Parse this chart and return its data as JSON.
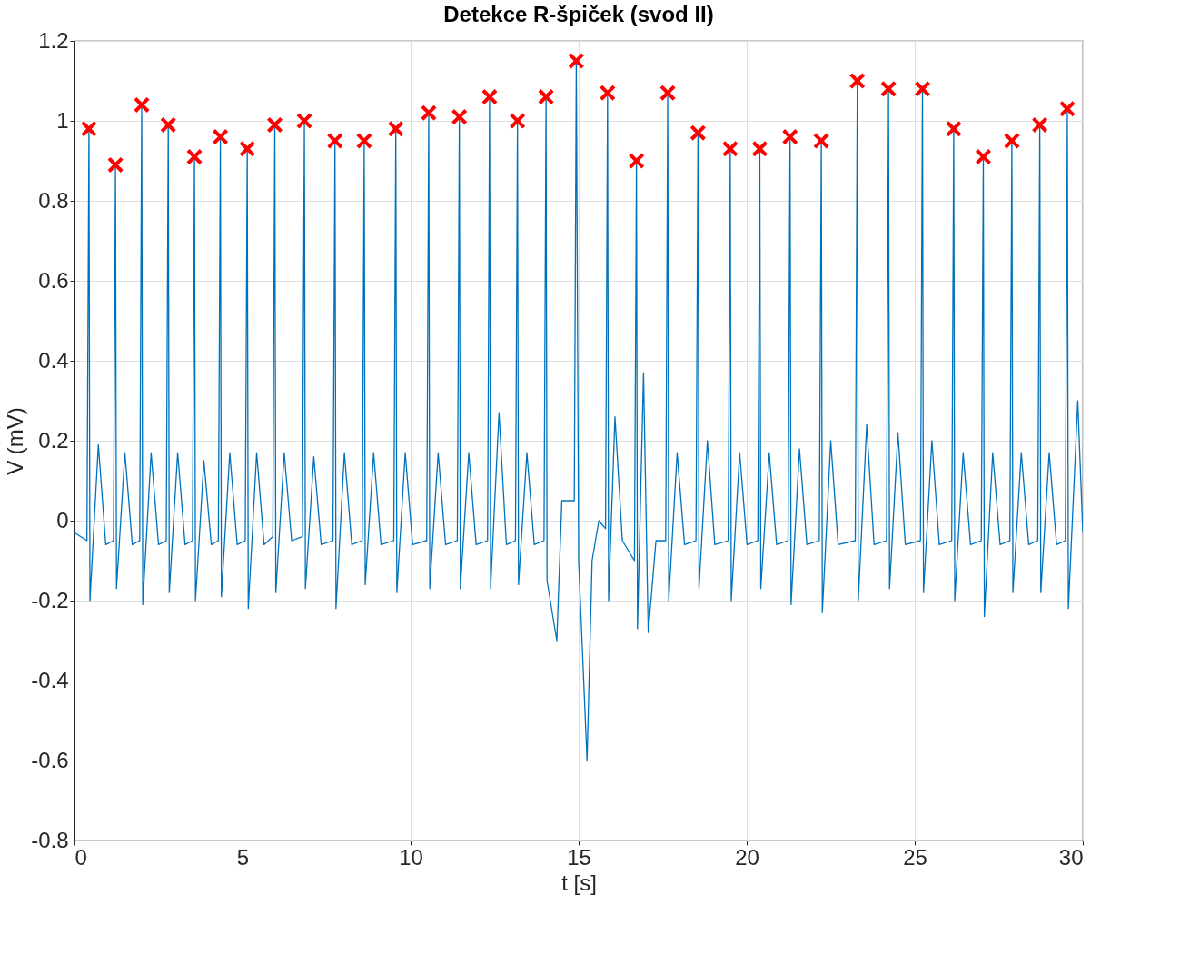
{
  "chart_data": {
    "type": "line",
    "title": "Detekce R-špiček (svod II)",
    "xlabel": "t [s]",
    "ylabel": "V (mV)",
    "xlim": [
      0,
      30
    ],
    "ylim": [
      -0.8,
      1.2
    ],
    "xticks": [
      0,
      5,
      10,
      15,
      20,
      25,
      30
    ],
    "yticks": [
      -0.8,
      -0.6,
      -0.4,
      -0.2,
      0,
      0.2,
      0.4,
      0.6,
      0.8,
      1,
      1.2
    ],
    "grid": true,
    "series": [
      {
        "color": "#0072bd",
        "marker": "none",
        "line_style": "solid",
        "x": [
          0,
          0.37,
          0.43,
          0.46,
          0.71,
          0.93,
          1.16,
          1.22,
          1.25,
          1.5,
          1.72,
          1.94,
          2.0,
          2.03,
          2.28,
          2.5,
          2.73,
          2.79,
          2.82,
          3.07,
          3.29,
          3.51,
          3.57,
          3.6,
          3.85,
          4.07,
          4.28,
          4.34,
          4.37,
          4.62,
          4.84,
          5.08,
          5.14,
          5.17,
          5.42,
          5.64,
          5.9,
          5.96,
          5.99,
          6.24,
          6.46,
          6.78,
          6.84,
          6.87,
          7.12,
          7.34,
          7.69,
          7.75,
          7.78,
          8.03,
          8.25,
          8.56,
          8.62,
          8.65,
          8.9,
          9.12,
          9.5,
          9.56,
          9.59,
          9.84,
          10.06,
          10.48,
          10.54,
          10.57,
          10.82,
          11.04,
          11.39,
          11.45,
          11.48,
          11.73,
          11.95,
          12.29,
          12.35,
          12.38,
          12.63,
          12.85,
          13.12,
          13.18,
          13.21,
          13.46,
          13.68,
          13.97,
          14.03,
          14.06,
          14.35,
          14.5,
          14.87,
          14.93,
          15.0,
          15.25,
          15.4,
          15.6,
          15.8,
          15.86,
          15.89,
          16.08,
          16.3,
          16.66,
          16.72,
          16.75,
          16.93,
          17.07,
          17.3,
          17.59,
          17.65,
          17.68,
          17.93,
          18.15,
          18.49,
          18.55,
          18.58,
          18.83,
          19.05,
          19.45,
          19.51,
          19.54,
          19.79,
          20.01,
          20.33,
          20.39,
          20.42,
          20.67,
          20.89,
          21.23,
          21.29,
          21.32,
          21.57,
          21.79,
          22.16,
          22.22,
          22.25,
          22.5,
          22.72,
          23.23,
          23.29,
          23.32,
          23.57,
          23.79,
          24.16,
          24.22,
          24.25,
          24.5,
          24.72,
          25.17,
          25.23,
          25.26,
          25.51,
          25.73,
          26.1,
          26.16,
          26.19,
          26.44,
          26.66,
          26.98,
          27.04,
          27.07,
          27.32,
          27.54,
          27.83,
          27.89,
          27.92,
          28.17,
          28.39,
          28.66,
          28.72,
          28.75,
          29.0,
          29.22,
          29.48,
          29.54,
          29.57,
          29.85,
          30.0
        ],
        "values": [
          -0.03,
          -0.05,
          0.98,
          -0.2,
          0.19,
          -0.06,
          -0.05,
          0.89,
          -0.17,
          0.17,
          -0.06,
          -0.05,
          1.04,
          -0.21,
          0.17,
          -0.06,
          -0.05,
          0.99,
          -0.18,
          0.17,
          -0.06,
          -0.05,
          0.91,
          -0.2,
          0.15,
          -0.06,
          -0.05,
          0.96,
          -0.19,
          0.17,
          -0.06,
          -0.05,
          0.93,
          -0.22,
          0.17,
          -0.06,
          -0.04,
          0.99,
          -0.18,
          0.17,
          -0.05,
          -0.04,
          1.0,
          -0.17,
          0.16,
          -0.06,
          -0.05,
          0.95,
          -0.22,
          0.17,
          -0.06,
          -0.05,
          0.95,
          -0.16,
          0.17,
          -0.06,
          -0.05,
          0.98,
          -0.18,
          0.17,
          -0.06,
          -0.05,
          1.02,
          -0.17,
          0.17,
          -0.06,
          -0.05,
          1.01,
          -0.17,
          0.17,
          -0.06,
          -0.05,
          1.06,
          -0.17,
          0.27,
          -0.06,
          -0.05,
          1.0,
          -0.16,
          0.17,
          -0.06,
          -0.05,
          1.06,
          -0.15,
          -0.3,
          0.05,
          0.05,
          1.15,
          -0.1,
          -0.6,
          -0.1,
          0.0,
          -0.02,
          1.07,
          -0.2,
          0.26,
          -0.05,
          -0.1,
          0.9,
          -0.27,
          0.37,
          -0.28,
          -0.05,
          -0.05,
          1.07,
          -0.2,
          0.17,
          -0.06,
          -0.05,
          0.97,
          -0.17,
          0.2,
          -0.06,
          -0.05,
          0.93,
          -0.2,
          0.17,
          -0.06,
          -0.05,
          0.93,
          -0.17,
          0.17,
          -0.06,
          -0.05,
          0.96,
          -0.21,
          0.18,
          -0.06,
          -0.05,
          0.95,
          -0.23,
          0.2,
          -0.06,
          -0.05,
          1.1,
          -0.2,
          0.24,
          -0.06,
          -0.05,
          1.08,
          -0.17,
          0.22,
          -0.06,
          -0.05,
          1.08,
          -0.18,
          0.2,
          -0.06,
          -0.05,
          0.98,
          -0.2,
          0.17,
          -0.06,
          -0.05,
          0.91,
          -0.24,
          0.17,
          -0.06,
          -0.05,
          0.95,
          -0.18,
          0.17,
          -0.06,
          -0.05,
          0.99,
          -0.18,
          0.17,
          -0.06,
          -0.05,
          1.03,
          -0.22,
          0.3,
          -0.03
        ]
      },
      {
        "type": "scatter",
        "color": "#ff0000",
        "marker": "cross",
        "x": [
          0.43,
          1.22,
          2.0,
          2.79,
          3.57,
          4.34,
          5.14,
          5.96,
          6.84,
          7.75,
          8.62,
          9.56,
          10.54,
          11.45,
          12.35,
          13.18,
          14.03,
          14.93,
          15.86,
          16.72,
          17.65,
          18.55,
          19.51,
          20.39,
          21.29,
          22.22,
          23.29,
          24.22,
          25.23,
          26.16,
          27.04,
          27.89,
          28.72,
          29.54
        ],
        "values": [
          0.98,
          0.89,
          1.04,
          0.99,
          0.91,
          0.96,
          0.93,
          0.99,
          1.0,
          0.95,
          0.95,
          0.98,
          1.02,
          1.01,
          1.06,
          1.0,
          1.06,
          1.15,
          1.07,
          0.9,
          1.07,
          0.97,
          0.93,
          0.93,
          0.96,
          0.95,
          1.1,
          1.08,
          1.08,
          0.98,
          0.91,
          0.95,
          0.99,
          1.03
        ]
      }
    ]
  }
}
